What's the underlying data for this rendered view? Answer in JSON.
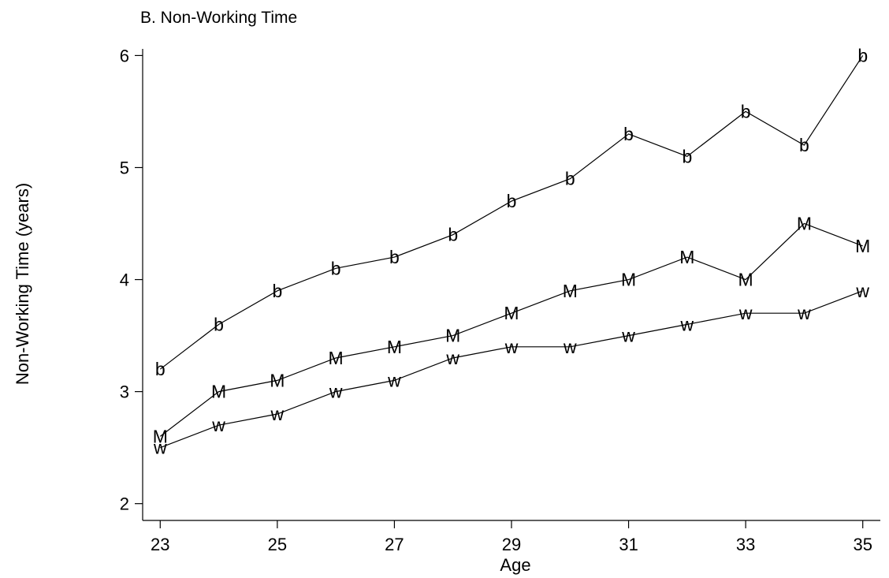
{
  "chart_data": {
    "type": "line",
    "title": "B. Non-Working Time",
    "xlabel": "Age",
    "ylabel": "Non-Working Time (years)",
    "x": [
      23,
      24,
      25,
      26,
      27,
      28,
      29,
      30,
      31,
      32,
      33,
      34,
      35
    ],
    "xticks": [
      23,
      25,
      27,
      29,
      31,
      33,
      35
    ],
    "yticks": [
      2,
      3,
      4,
      5,
      6
    ],
    "xlim": [
      22.7,
      35.3
    ],
    "ylim": [
      1.85,
      6.2
    ],
    "grid": false,
    "legend": "none",
    "line_color": "#000000",
    "series": [
      {
        "marker": "b",
        "values": [
          3.2,
          3.6,
          3.9,
          4.1,
          4.2,
          4.4,
          4.7,
          4.9,
          5.3,
          5.1,
          5.5,
          5.2,
          6.0
        ]
      },
      {
        "marker": "M",
        "values": [
          2.6,
          3.0,
          3.1,
          3.3,
          3.4,
          3.5,
          3.7,
          3.9,
          4.0,
          4.2,
          4.0,
          4.5,
          4.3
        ]
      },
      {
        "marker": "w",
        "values": [
          2.5,
          2.7,
          2.8,
          3.0,
          3.1,
          3.3,
          3.4,
          3.4,
          3.5,
          3.6,
          3.7,
          3.7,
          3.9
        ]
      }
    ]
  }
}
